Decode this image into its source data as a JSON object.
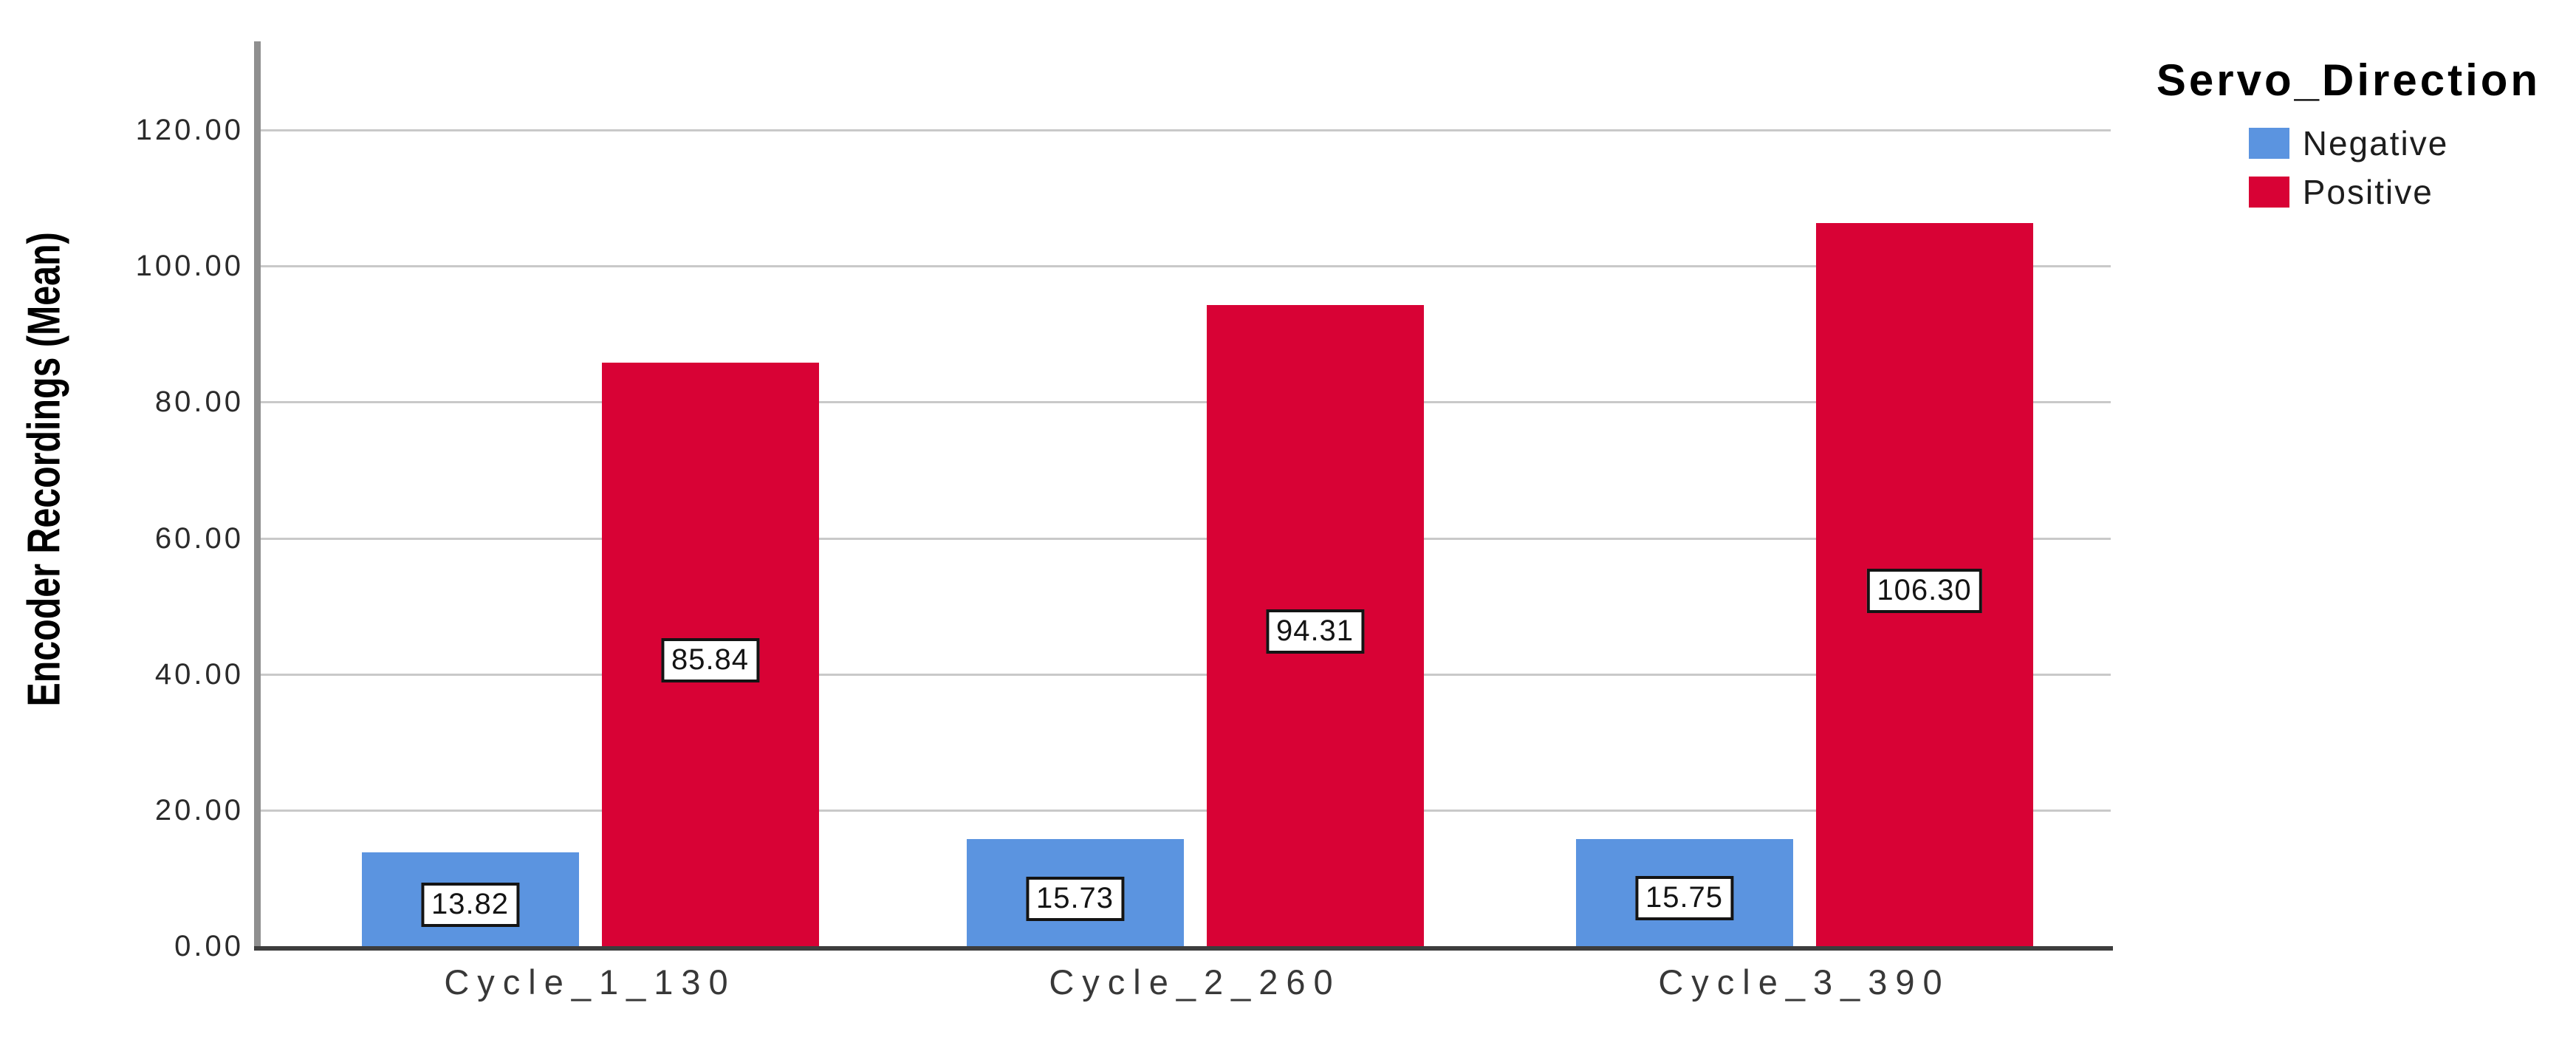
{
  "chart_data": {
    "type": "bar",
    "title": "",
    "xlabel": "",
    "ylabel": "Encoder Recordings (Mean)",
    "categories": [
      "Cycle_1_130",
      "Cycle_2_260",
      "Cycle_3_390"
    ],
    "series": [
      {
        "name": "Negative",
        "color": "#5B94E0",
        "values": [
          13.82,
          15.73,
          15.75
        ]
      },
      {
        "name": "Positive",
        "color": "#D80235",
        "values": [
          85.84,
          94.31,
          106.3
        ]
      }
    ],
    "yticks": [
      0,
      20,
      40,
      60,
      80,
      100,
      120
    ],
    "ylim": [
      0,
      133
    ],
    "grid": "horizontal",
    "bar_value_labels": true,
    "legend": {
      "title": "Servo_Direction",
      "position": "top-right",
      "entries": [
        "Negative",
        "Positive"
      ]
    },
    "colors": {
      "negative_bar": "#5B94E0",
      "positive_bar": "#D80235",
      "gridline": "#C9C9C9",
      "y_axis_line": "#8F8F8F",
      "x_axis_line": "#3D3D3D",
      "label_box_border": "#141414",
      "label_box_fill": "#FFFFFF"
    }
  }
}
